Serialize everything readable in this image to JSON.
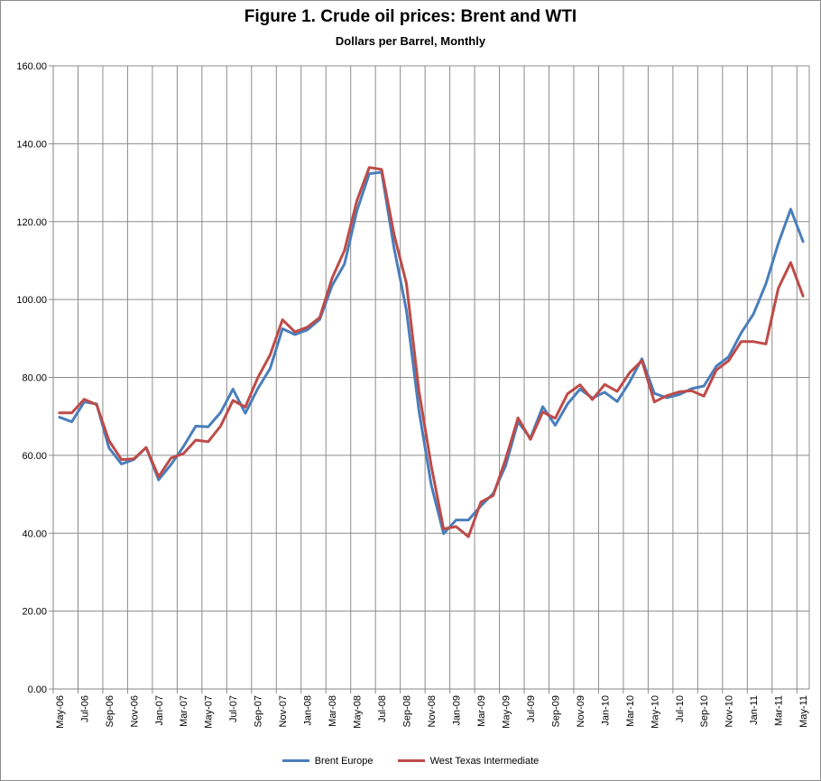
{
  "chart_data": {
    "type": "line",
    "title": "Figure 1. Crude oil prices: Brent and WTI",
    "subtitle": "Dollars per Barrel, Monthly",
    "xlabel": "",
    "ylabel": "",
    "ylim": [
      0,
      160
    ],
    "ytick_labels": [
      "0.00",
      "20.00",
      "40.00",
      "60.00",
      "80.00",
      "100.00",
      "120.00",
      "140.00",
      "160.00"
    ],
    "x": [
      "May-06",
      "Jun-06",
      "Jul-06",
      "Aug-06",
      "Sep-06",
      "Oct-06",
      "Nov-06",
      "Dec-06",
      "Jan-07",
      "Feb-07",
      "Mar-07",
      "Apr-07",
      "May-07",
      "Jun-07",
      "Jul-07",
      "Aug-07",
      "Sep-07",
      "Oct-07",
      "Nov-07",
      "Dec-07",
      "Jan-08",
      "Feb-08",
      "Mar-08",
      "Apr-08",
      "May-08",
      "Jun-08",
      "Jul-08",
      "Aug-08",
      "Sep-08",
      "Oct-08",
      "Nov-08",
      "Dec-08",
      "Jan-09",
      "Feb-09",
      "Mar-09",
      "Apr-09",
      "May-09",
      "Jun-09",
      "Jul-09",
      "Aug-09",
      "Sep-09",
      "Oct-09",
      "Nov-09",
      "Dec-09",
      "Jan-10",
      "Feb-10",
      "Mar-10",
      "Apr-10",
      "May-10",
      "Jun-10",
      "Jul-10",
      "Aug-10",
      "Sep-10",
      "Oct-10",
      "Nov-10",
      "Dec-10",
      "Jan-11",
      "Feb-11",
      "Mar-11",
      "Apr-11",
      "May-11"
    ],
    "xtick_labels": [
      "May-06",
      "Jul-06",
      "Sep-06",
      "Nov-06",
      "Jan-07",
      "Mar-07",
      "May-07",
      "Jul-07",
      "Sep-07",
      "Nov-07",
      "Jan-08",
      "Mar-08",
      "May-08",
      "Jul-08",
      "Sep-08",
      "Nov-08",
      "Jan-09",
      "Mar-09",
      "May-09",
      "Jul-09",
      "Sep-09",
      "Nov-09",
      "Jan-10",
      "Mar-10",
      "May-10",
      "Jul-10",
      "Sep-10",
      "Nov-10",
      "Jan-11",
      "Mar-11",
      "May-11"
    ],
    "grid": true,
    "legend_position": "bottom",
    "series": [
      {
        "name": "Brent Europe",
        "color": "#4a7ebb",
        "values": [
          69.8,
          68.6,
          73.7,
          73.2,
          61.9,
          57.8,
          58.9,
          62.0,
          53.7,
          57.6,
          62.2,
          67.5,
          67.3,
          71.0,
          77.0,
          70.8,
          77.1,
          82.3,
          92.5,
          91.0,
          92.2,
          94.9,
          103.6,
          109.1,
          122.8,
          132.3,
          132.7,
          113.2,
          97.2,
          71.6,
          52.4,
          39.9,
          43.4,
          43.4,
          47.0,
          50.2,
          57.3,
          68.6,
          64.4,
          72.5,
          67.7,
          73.2,
          77.0,
          74.7,
          76.2,
          73.8,
          78.8,
          84.8,
          75.9,
          74.8,
          75.6,
          77.1,
          77.8,
          82.9,
          85.3,
          91.4,
          96.3,
          104.0,
          114.4,
          123.2,
          114.9
        ]
      },
      {
        "name": "West Texas Intermediate",
        "color": "#be4b48",
        "values": [
          70.9,
          70.9,
          74.4,
          73.0,
          63.8,
          58.9,
          59.1,
          62.0,
          54.5,
          59.3,
          60.4,
          63.9,
          63.5,
          67.5,
          74.1,
          72.4,
          79.9,
          85.8,
          94.8,
          91.7,
          92.9,
          95.4,
          105.5,
          112.6,
          125.4,
          133.9,
          133.4,
          116.7,
          104.1,
          76.6,
          57.3,
          41.1,
          41.7,
          39.1,
          48.0,
          49.7,
          59.0,
          69.6,
          64.1,
          71.1,
          69.5,
          75.8,
          78.1,
          74.3,
          78.2,
          76.4,
          81.2,
          84.3,
          73.7,
          75.3,
          76.3,
          76.6,
          75.2,
          81.9,
          84.3,
          89.2,
          89.2,
          88.6,
          102.9,
          109.5,
          100.9
        ]
      }
    ]
  }
}
